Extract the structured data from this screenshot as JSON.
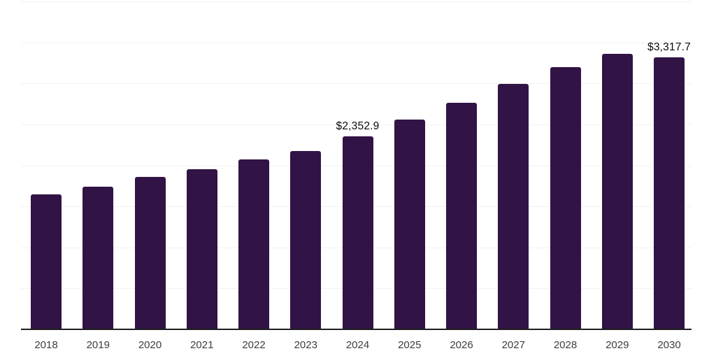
{
  "chart_data": {
    "type": "bar",
    "title": "",
    "xlabel": "",
    "ylabel": "",
    "categories": [
      "2018",
      "2019",
      "2020",
      "2021",
      "2022",
      "2023",
      "2024",
      "2025",
      "2026",
      "2027",
      "2028",
      "2029",
      "2030"
    ],
    "values": [
      1650,
      1737,
      1857,
      1956,
      2075,
      2179,
      2352.9,
      2559,
      2766,
      2991,
      3198,
      3358,
      3317.7
    ],
    "annotations": [
      {
        "category": "2024",
        "label": "$2,352.9"
      },
      {
        "category": "2030",
        "label": "$3,317.7"
      }
    ],
    "ylim": [
      0,
      4000
    ],
    "grid_step": 500,
    "grid": "horizontal-only",
    "y_tick_labels_visible": false,
    "legend_position": "none",
    "colors": {
      "bar": "#321345",
      "gridline": "#f2f2f2",
      "axis_line": "#1f1f1f",
      "tick_label": "#3d3d3d",
      "annotation_text": "#0a0a0a",
      "background": "#ffffff"
    }
  }
}
